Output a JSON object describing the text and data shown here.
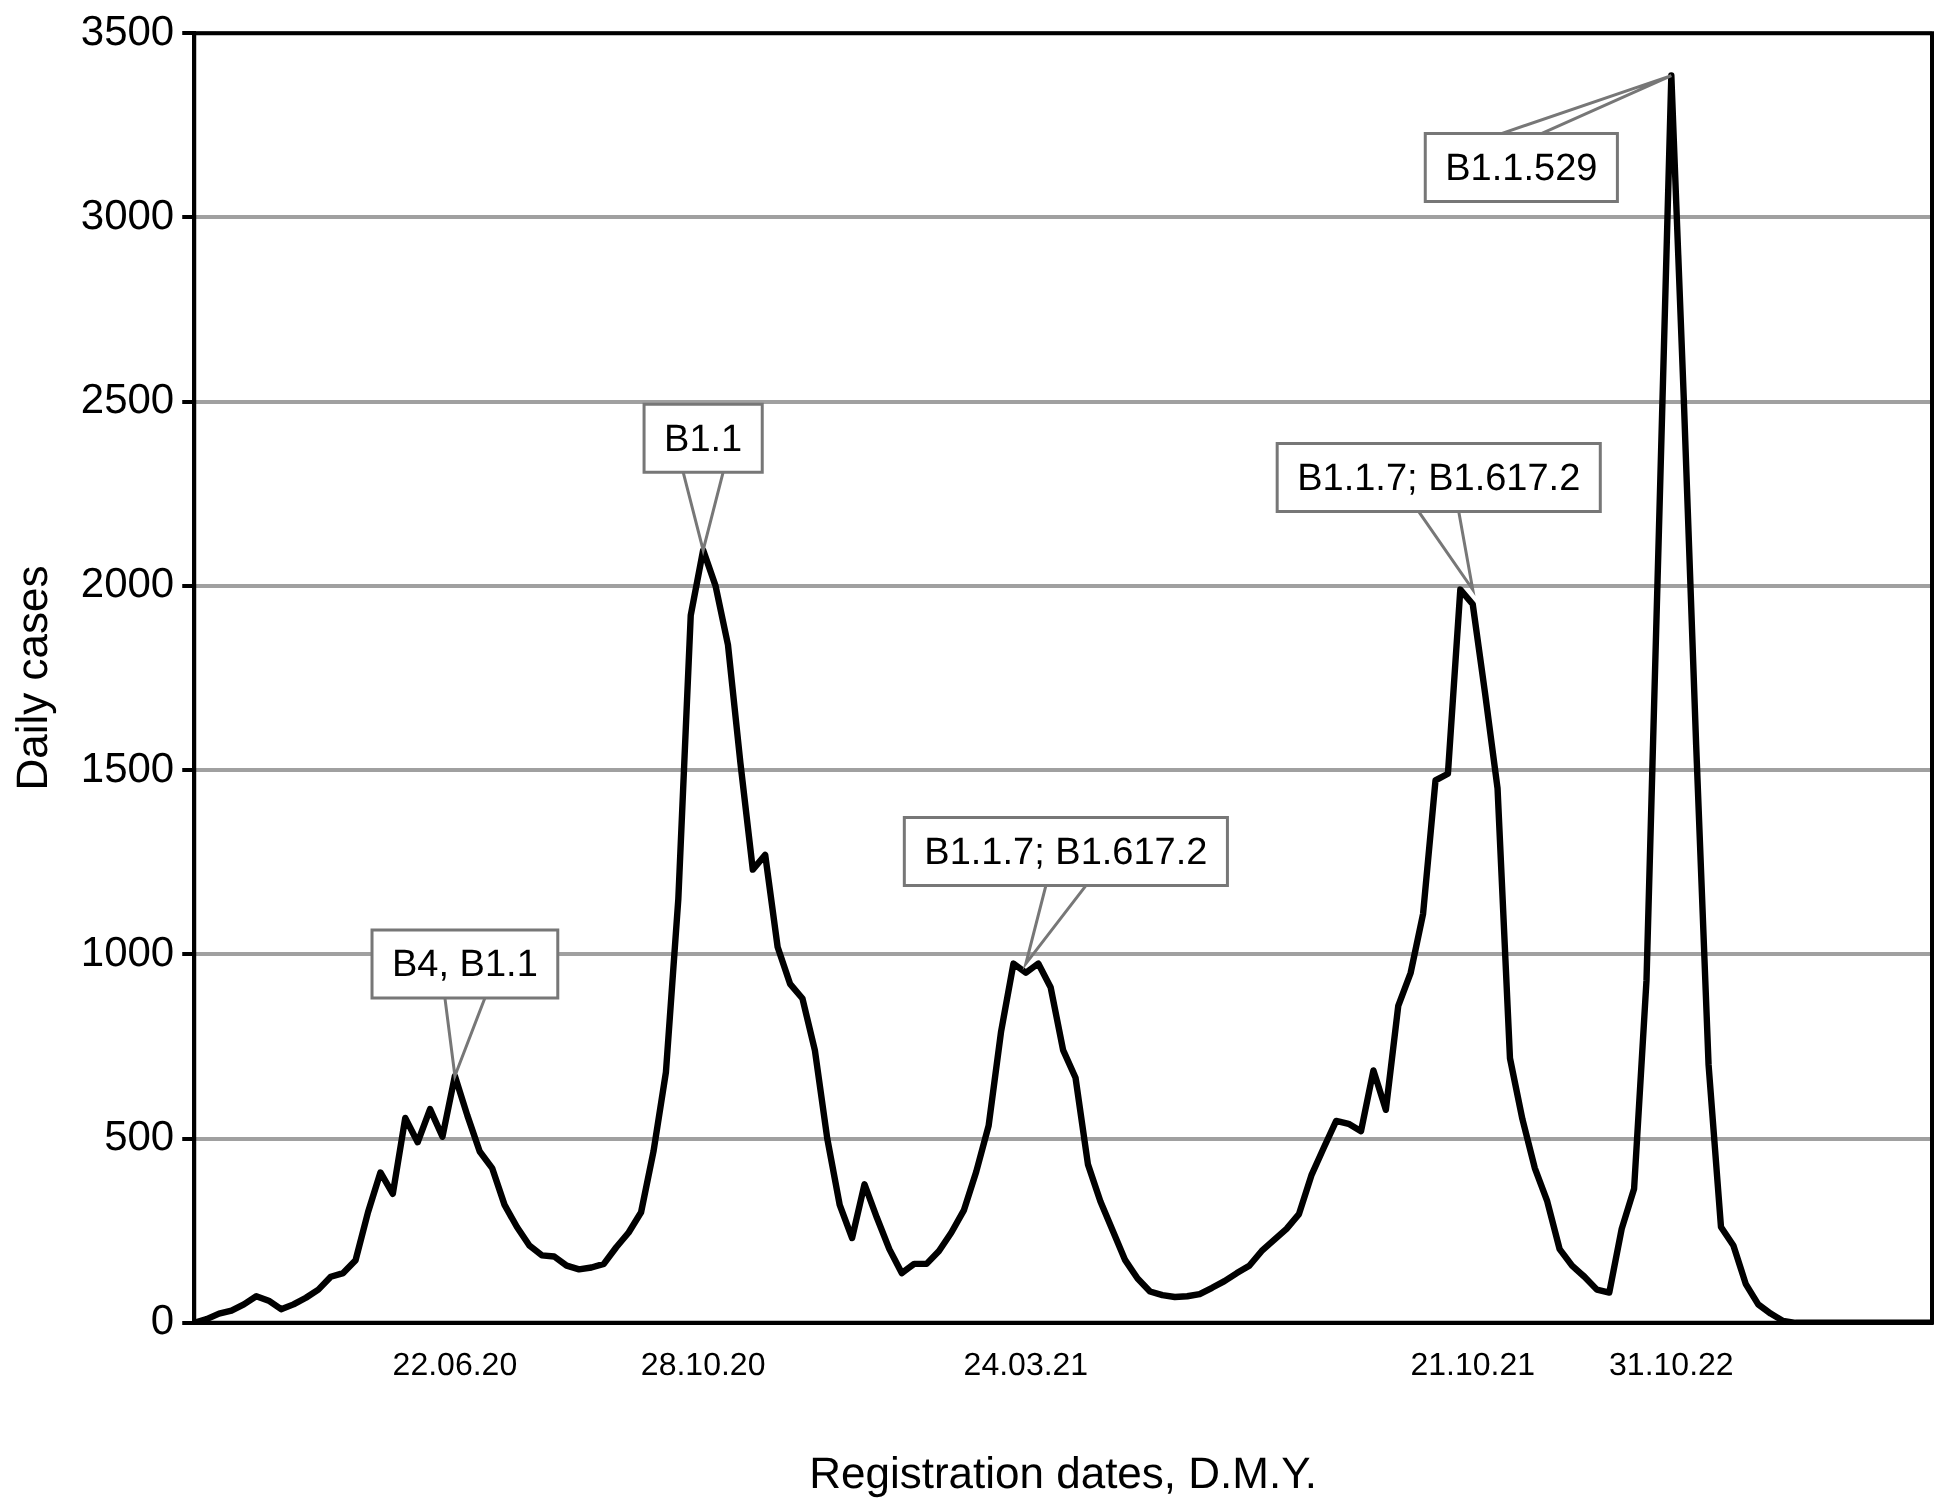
{
  "chart_data": {
    "type": "line",
    "xlabel": "Registration dates, D.M.Y.",
    "ylabel": "Daily cases",
    "categories": [
      null,
      null,
      null,
      null,
      null,
      null,
      null,
      null,
      null,
      null,
      null,
      null,
      null,
      null,
      null,
      null,
      null,
      null,
      null,
      null,
      null,
      "22.06.20",
      null,
      null,
      null,
      null,
      null,
      null,
      null,
      null,
      null,
      null,
      null,
      null,
      null,
      null,
      null,
      null,
      null,
      null,
      null,
      "28.10.20",
      null,
      null,
      null,
      null,
      null,
      null,
      null,
      null,
      null,
      null,
      null,
      null,
      null,
      null,
      null,
      null,
      null,
      null,
      null,
      null,
      null,
      null,
      null,
      null,
      null,
      "24.03.21",
      null,
      null,
      null,
      null,
      null,
      null,
      null,
      null,
      null,
      null,
      null,
      null,
      null,
      null,
      null,
      null,
      null,
      null,
      null,
      null,
      null,
      null,
      null,
      null,
      null,
      null,
      null,
      null,
      null,
      null,
      null,
      null,
      null,
      null,
      null,
      "21.10.21",
      null,
      null,
      null,
      null,
      null,
      null,
      null,
      null,
      null,
      null,
      null,
      null,
      null,
      null,
      null,
      "31.10.22",
      null,
      null,
      null,
      null,
      null,
      null,
      null,
      null,
      null,
      null,
      null,
      null,
      null,
      null,
      null,
      null,
      null,
      null,
      null,
      null,
      null
    ],
    "series": [
      {
        "color": "#000000",
        "values": [
          0,
          10,
          25,
          33,
          50,
          72,
          60,
          37,
          50,
          68,
          90,
          125,
          135,
          170,
          300,
          408,
          350,
          556,
          490,
          580,
          505,
          670,
          563,
          465,
          420,
          320,
          260,
          210,
          183,
          180,
          155,
          145,
          150,
          160,
          205,
          245,
          300,
          465,
          680,
          1150,
          1920,
          2097,
          2000,
          1840,
          1520,
          1230,
          1270,
          1020,
          920,
          880,
          740,
          500,
          320,
          230,
          376,
          285,
          200,
          135,
          160,
          160,
          195,
          245,
          305,
          410,
          535,
          790,
          975,
          950,
          975,
          910,
          740,
          665,
          430,
          330,
          250,
          170,
          120,
          85,
          75,
          70,
          72,
          78,
          95,
          113,
          135,
          155,
          195,
          225,
          255,
          295,
          400,
          475,
          548,
          540,
          520,
          685,
          578,
          860,
          950,
          1110,
          1472,
          1490,
          1990,
          1950,
          1707,
          1450,
          718,
          553,
          420,
          330,
          200,
          155,
          125,
          90,
          82,
          255,
          364,
          930,
          2150,
          3385,
          2510,
          1568,
          700,
          260,
          210,
          105,
          50,
          25,
          5,
          0,
          0,
          0,
          0,
          0,
          0,
          0,
          0,
          0,
          0,
          0,
          0
        ]
      }
    ],
    "ylim": [
      0,
      3500
    ],
    "yticks": [
      0,
      500,
      1000,
      1500,
      2000,
      2500,
      3000,
      3500
    ],
    "grid": "y",
    "legend": false,
    "marker": "none",
    "line_style": "solid",
    "annotations": [
      {
        "text": "B4, B1.1",
        "x": "22.06.20",
        "y": 670
      },
      {
        "text": "B1.1",
        "x": "28.10.20",
        "y": 2097
      },
      {
        "text": "B1.1.7; B1.617.2",
        "x": "24.03.21",
        "y": 975
      },
      {
        "text": "B1.1.7; B1.617.2",
        "x": "21.10.21",
        "y": 1990
      },
      {
        "text": "B1.1.529",
        "x": "31.10.22",
        "y": 3385
      }
    ]
  }
}
